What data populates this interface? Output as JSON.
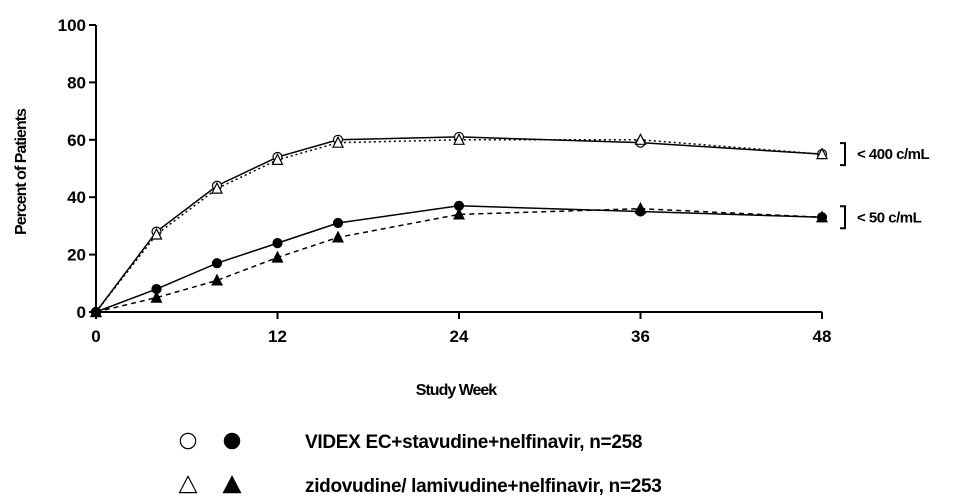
{
  "chart_data": {
    "type": "line",
    "xlabel": "Study Week",
    "ylabel": "Percent of Patients",
    "xlim": [
      0,
      48
    ],
    "ylim": [
      0,
      100
    ],
    "xticks": [
      0,
      12,
      24,
      36,
      48
    ],
    "yticks": [
      0,
      20,
      40,
      60,
      80,
      100
    ],
    "grid": false,
    "legend_position": "bottom-center",
    "brackets": [
      {
        "label": "< 400 c/mL",
        "series_pair": [
          "videx_400",
          "zido_400"
        ]
      },
      {
        "label": "< 50 c/mL",
        "series_pair": [
          "videx_50",
          "zido_50"
        ]
      }
    ],
    "series": [
      {
        "id": "videx_400",
        "group": "VIDEX EC+stavudine+nelfinavir, n=258",
        "marker": "open-circle",
        "line": "solid",
        "x": [
          0,
          4,
          8,
          12,
          16,
          24,
          36,
          48
        ],
        "y": [
          0,
          28,
          44,
          54,
          60,
          61,
          59,
          55
        ]
      },
      {
        "id": "zido_400",
        "group": "zidovudine/lamivudine+nelfinavir, n=253",
        "marker": "open-triangle",
        "line": "dotted",
        "x": [
          0,
          4,
          8,
          12,
          16,
          24,
          36,
          48
        ],
        "y": [
          0,
          27,
          43,
          53,
          59,
          60,
          60,
          55
        ]
      },
      {
        "id": "videx_50",
        "group": "VIDEX EC+stavudine+nelfinavir, n=258",
        "marker": "filled-circle",
        "line": "solid",
        "x": [
          0,
          4,
          8,
          12,
          16,
          24,
          36,
          48
        ],
        "y": [
          0,
          8,
          17,
          24,
          31,
          37,
          35,
          33
        ]
      },
      {
        "id": "zido_50",
        "group": "zidovudine/lamivudine+nelfinavir, n=253",
        "marker": "filled-triangle",
        "line": "dashed",
        "x": [
          0,
          4,
          8,
          12,
          16,
          24,
          36,
          48
        ],
        "y": [
          0,
          5,
          11,
          19,
          26,
          34,
          36,
          33
        ]
      }
    ],
    "legend": [
      {
        "label": "VIDEX EC+stavudine+nelfinavir, n=258",
        "markers": [
          "open-circle",
          "filled-circle"
        ]
      },
      {
        "label": "zidovudine/ lamivudine+nelfinavir, n=253",
        "markers": [
          "open-triangle",
          "filled-triangle"
        ]
      }
    ],
    "colors": {
      "line": "#000000",
      "background": "#ffffff"
    }
  }
}
